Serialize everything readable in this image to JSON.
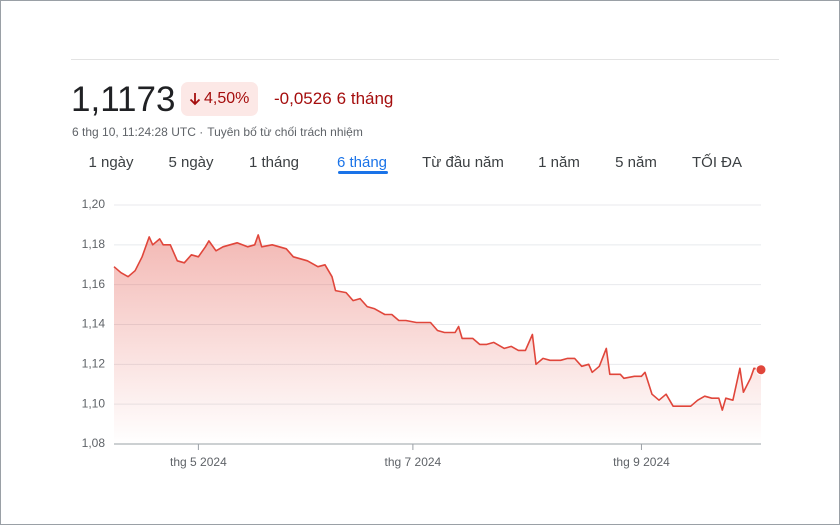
{
  "header": {
    "price": "1,1173",
    "change_percent": "4,50%",
    "change_value": "-0,0526",
    "period": "6 tháng",
    "timestamp": "6 thg 10, 11:24:28 UTC ·",
    "disclaimer": "Tuyên bố từ chối trách nhiệm"
  },
  "tabs": {
    "items": [
      "1 ngày",
      "5 ngày",
      "1 tháng",
      "6 tháng",
      "Từ đầu năm",
      "1 năm",
      "5 năm",
      "TỐI ĐA"
    ],
    "active": 3
  },
  "chart_data": {
    "type": "line",
    "color": "#e0463b",
    "grid": true,
    "x": [
      0,
      2,
      4,
      6,
      8,
      10,
      11,
      13,
      14,
      16,
      18,
      20,
      22,
      24,
      26,
      27,
      29,
      31,
      33,
      35,
      38,
      40,
      41,
      42,
      45,
      47,
      49,
      51,
      53,
      55,
      58,
      60,
      62,
      63,
      66,
      68,
      70,
      72,
      74,
      77,
      79,
      81,
      83,
      86,
      88,
      90,
      92,
      94,
      97,
      98,
      99,
      102,
      104,
      106,
      108,
      111,
      113,
      115,
      117,
      119,
      120,
      122,
      124,
      127,
      129,
      131,
      133,
      135,
      136,
      138,
      140,
      141,
      144,
      145,
      148,
      150,
      151,
      153,
      155,
      157,
      159,
      161,
      164,
      166,
      168,
      170,
      172,
      173,
      174,
      176,
      178,
      179,
      181,
      182,
      184
    ],
    "values": [
      1.169,
      1.166,
      1.164,
      1.167,
      1.174,
      1.184,
      1.18,
      1.183,
      1.18,
      1.18,
      1.172,
      1.171,
      1.175,
      1.174,
      1.179,
      1.182,
      1.177,
      1.179,
      1.18,
      1.181,
      1.179,
      1.18,
      1.185,
      1.179,
      1.18,
      1.179,
      1.178,
      1.174,
      1.173,
      1.172,
      1.169,
      1.17,
      1.164,
      1.157,
      1.156,
      1.152,
      1.153,
      1.149,
      1.148,
      1.145,
      1.145,
      1.142,
      1.142,
      1.141,
      1.141,
      1.141,
      1.137,
      1.136,
      1.136,
      1.139,
      1.133,
      1.133,
      1.13,
      1.13,
      1.131,
      1.128,
      1.129,
      1.127,
      1.127,
      1.135,
      1.12,
      1.123,
      1.122,
      1.122,
      1.123,
      1.123,
      1.119,
      1.12,
      1.116,
      1.119,
      1.128,
      1.115,
      1.115,
      1.113,
      1.114,
      1.114,
      1.116,
      1.105,
      1.102,
      1.105,
      1.099,
      1.099,
      1.099,
      1.102,
      1.104,
      1.103,
      1.103,
      1.097,
      1.103,
      1.102,
      1.118,
      1.106,
      1.113,
      1.118,
      1.1173
    ],
    "xlim": [
      0,
      184
    ],
    "xticks": [
      {
        "value": 24,
        "label": "thg 5 2024"
      },
      {
        "value": 85,
        "label": "thg 7 2024"
      },
      {
        "value": 150,
        "label": "thg 9 2024"
      }
    ],
    "ylim": [
      1.08,
      1.2
    ],
    "yticks": [
      {
        "value": 1.08,
        "label": "1,08"
      },
      {
        "value": 1.1,
        "label": "1,10"
      },
      {
        "value": 1.12,
        "label": "1,12"
      },
      {
        "value": 1.14,
        "label": "1,14"
      },
      {
        "value": 1.16,
        "label": "1,16"
      },
      {
        "value": 1.18,
        "label": "1,18"
      },
      {
        "value": 1.2,
        "label": "1,20"
      }
    ]
  }
}
